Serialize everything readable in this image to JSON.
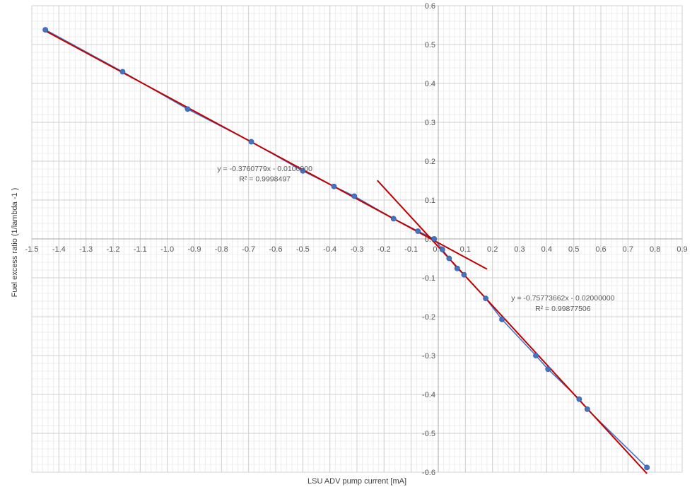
{
  "chart_data": {
    "type": "scatter",
    "title": "",
    "xlabel": "LSU ADV pump current [mA]",
    "ylabel": "Fuel excess ratio (1/lambda -1 )",
    "xlim": [
      -1.5,
      0.9
    ],
    "ylim": [
      -0.6,
      0.6
    ],
    "x_major_step": 0.1,
    "y_major_step": 0.1,
    "x_minor_step": 0.02,
    "y_minor_step": 0.02,
    "grid": true,
    "x_ticks": [
      "-1.5",
      "-1.4",
      "-1.3",
      "-1.2",
      "-1.1",
      "-1.0",
      "-0.9",
      "-0.8",
      "-0.7",
      "-0.6",
      "-0.5",
      "-0.4",
      "-0.3",
      "-0.2",
      "-0.1",
      "0.0",
      "0.1",
      "0.2",
      "0.3",
      "0.4",
      "0.5",
      "0.6",
      "0.7",
      "0.8",
      "0.9"
    ],
    "y_ticks": [
      "-0.6",
      "-0.5",
      "-0.4",
      "-0.3",
      "-0.2",
      "-0.1",
      "0.0",
      "0.1",
      "0.2",
      "0.3",
      "0.4",
      "0.5",
      "0.6"
    ],
    "series": [
      {
        "color": "#4472C4",
        "marker": "circle",
        "x": [
          -1.45,
          -1.165,
          -0.925,
          -0.69,
          -0.5,
          -0.385,
          -0.31,
          -0.165,
          -0.075,
          -0.015,
          0.015,
          0.04,
          0.07,
          0.095,
          0.175,
          0.235,
          0.36,
          0.405,
          0.52,
          0.55,
          0.77
        ],
        "y": [
          0.538,
          0.43,
          0.334,
          0.25,
          0.175,
          0.135,
          0.11,
          0.052,
          0.02,
          0.0,
          -0.027,
          -0.05,
          -0.076,
          -0.092,
          -0.153,
          -0.207,
          -0.3,
          -0.335,
          -0.412,
          -0.438,
          -0.588
        ]
      }
    ],
    "trendlines": [
      {
        "color": "#C00000",
        "slope": -0.3760779,
        "intercept": -0.01,
        "x_range": [
          -1.45,
          0.18
        ],
        "equation": "y = -0.3760779x - 0.0100000",
        "r2": "R² = 0.9998497"
      },
      {
        "color": "#C00000",
        "slope": -0.75773662,
        "intercept": -0.02,
        "x_range": [
          -0.225,
          0.77
        ],
        "equation": "y = -0.75773662x - 0.02000000",
        "r2": "R² = 0.99877506"
      }
    ]
  }
}
